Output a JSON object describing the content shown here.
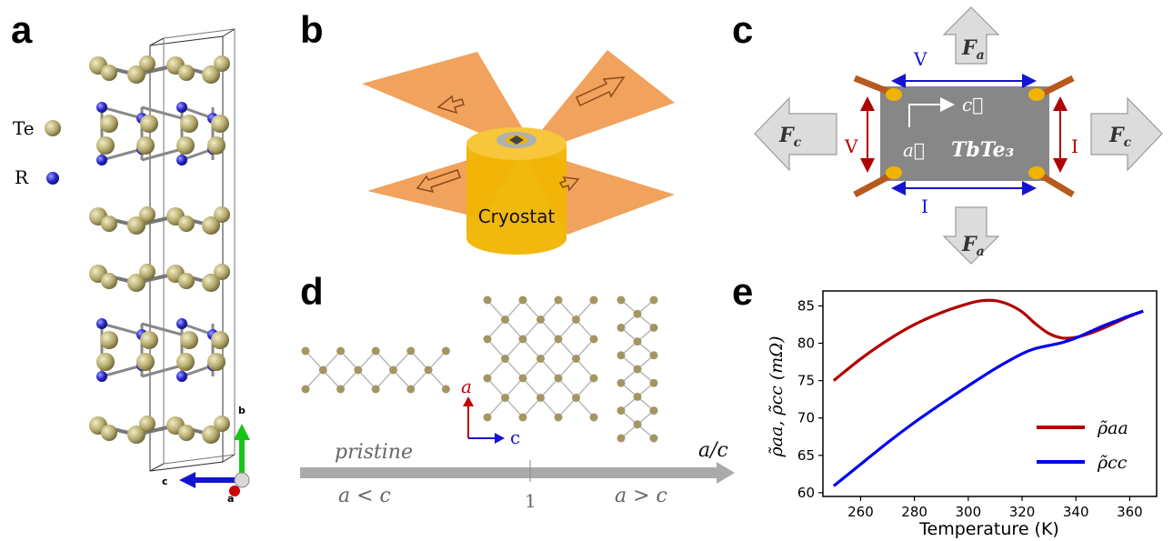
{
  "panels": {
    "a": "a",
    "b": "b",
    "c": "c",
    "d": "d",
    "e": "e"
  },
  "panel_a": {
    "legend": [
      {
        "label": "Te",
        "color": "#ada36e"
      },
      {
        "label": "R",
        "color": "#2b2bd6"
      }
    ],
    "axes": {
      "b": "b",
      "c": "c",
      "a": "a"
    }
  },
  "panel_b": {
    "label": "Cryostat",
    "cylinder_color": "#f0b400",
    "beam_color": "#f09a4e"
  },
  "panel_c": {
    "sample": "TbTe₃",
    "top_V": "V",
    "left_V": "V",
    "right_I": "I",
    "bottom_I": "I",
    "force_top": "F",
    "force_top_sub": "a",
    "force_bottom": "F",
    "force_bottom_sub": "a",
    "force_left": "F",
    "force_left_sub": "c",
    "force_right": "F",
    "force_right_sub": "c",
    "vec_c": "c⃗",
    "vec_a": "a⃗"
  },
  "panel_d": {
    "axis_label": "a/c",
    "pristine": "pristine",
    "a_lt_c": "a < c",
    "one": "1",
    "a_gt_c": "a > c",
    "lattice_a": "a",
    "lattice_c": "c"
  },
  "chart_data": {
    "type": "line",
    "title": "",
    "xlabel": "Temperature (K)",
    "ylabel": "ρ̃aa, ρ̃cc (mΩ)",
    "xlim": [
      246,
      370
    ],
    "ylim": [
      59.5,
      87
    ],
    "xticks": [
      260,
      280,
      300,
      320,
      340,
      360
    ],
    "yticks": [
      60,
      65,
      70,
      75,
      80,
      85
    ],
    "legend_position": "lower-right",
    "series": [
      {
        "name": "ρ̃aa",
        "color": "#b00000",
        "x": [
          250,
          260,
          270,
          280,
          290,
          300,
          305,
          310,
          315,
          320,
          325,
          330,
          335,
          340,
          345,
          350,
          355,
          360,
          365
        ],
        "y": [
          75.0,
          77.9,
          80.4,
          82.5,
          84.1,
          85.3,
          85.7,
          85.7,
          85.2,
          84.2,
          82.6,
          81.3,
          80.7,
          80.8,
          81.3,
          82.0,
          82.8,
          83.6,
          84.3
        ]
      },
      {
        "name": "ρ̃cc",
        "color": "#0000ee",
        "x": [
          250,
          260,
          270,
          280,
          290,
          300,
          310,
          320,
          325,
          330,
          335,
          340,
          345,
          350,
          355,
          360,
          365
        ],
        "y": [
          60.9,
          63.8,
          66.7,
          69.4,
          71.9,
          74.3,
          76.6,
          78.6,
          79.3,
          79.7,
          80.1,
          80.7,
          81.5,
          82.3,
          83.0,
          83.7,
          84.3
        ]
      }
    ]
  }
}
